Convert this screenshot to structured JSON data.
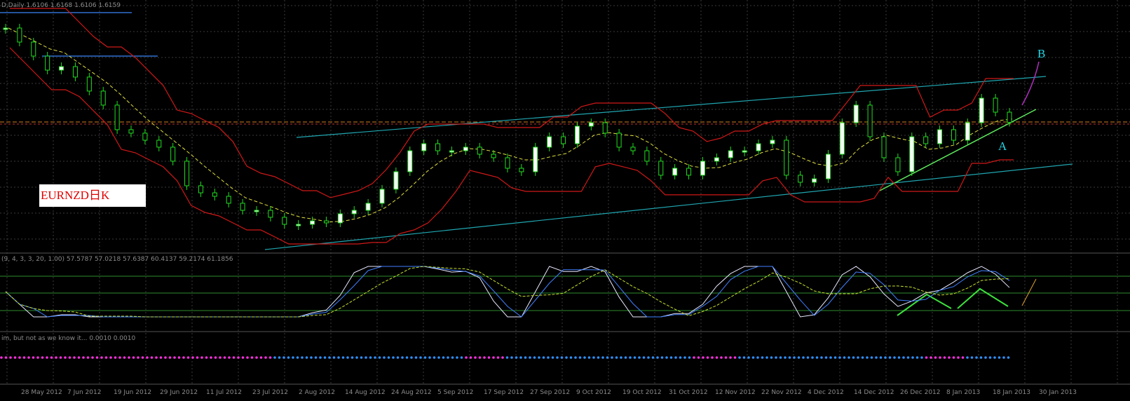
{
  "header": {
    "symbol_info": "D,Daily  1.6106 1.6168 1.6106 1.6159",
    "stoch_info": "(9, 4, 3, 3, 20, 1.00) 57.5787 57.0218 57.6387 60.4137 59.2174 61.1856",
    "lower_info": "im, but not as we know it...  0.0010 0.0010"
  },
  "label": "EURNZD日K",
  "annotations": [
    "A",
    "B"
  ],
  "chart_data": {
    "type": "candlestick",
    "closes": [
      1.7,
      1.6875,
      1.675,
      1.6625,
      1.6656,
      1.6563,
      1.6438,
      1.6313,
      1.6094,
      1.6063,
      1.6,
      1.5938,
      1.5813,
      1.5594,
      1.5531,
      1.55,
      1.5438,
      1.5375,
      1.5375,
      1.5313,
      1.525,
      1.525,
      1.5281,
      1.5263,
      1.5344,
      1.5375,
      1.5438,
      1.5563,
      1.5719,
      1.5906,
      1.5969,
      1.5906,
      1.5906,
      1.5938,
      1.5875,
      1.5844,
      1.575,
      1.5719,
      1.5938,
      1.6031,
      1.5969,
      1.6125,
      1.6156,
      1.6063,
      1.5938,
      1.5906,
      1.5813,
      1.5688,
      1.575,
      1.5688,
      1.5813,
      1.5844,
      1.5906,
      1.5906,
      1.5969,
      1.6,
      1.5688,
      1.5625,
      1.5656,
      1.5875,
      1.6156,
      1.6313,
      1.6031,
      1.5844,
      1.5719,
      1.6031,
      1.5969,
      1.6094,
      1.6,
      1.6156,
      1.6375,
      1.625,
      1.6159
    ],
    "ylim": [
      1.5,
      1.725
    ],
    "dates": [
      "28 May 2012",
      "7 Jun 2012",
      "19 Jun 2012",
      "29 Jun 2012",
      "11 Jul 2012",
      "23 Jul 2012",
      "2 Aug 2012",
      "14 Aug 2012",
      "24 Aug 2012",
      "5 Sep 2012",
      "17 Sep 2012",
      "27 Sep 2012",
      "9 Oct 2012",
      "19 Oct 2012",
      "31 Oct 2012",
      "12 Nov 2012",
      "22 Nov 2012",
      "4 Dec 2012",
      "14 Dec 2012",
      "26 Dec 2012",
      "8 Jan 2013",
      "18 Jan 2013",
      "30 Jan 2013"
    ]
  }
}
